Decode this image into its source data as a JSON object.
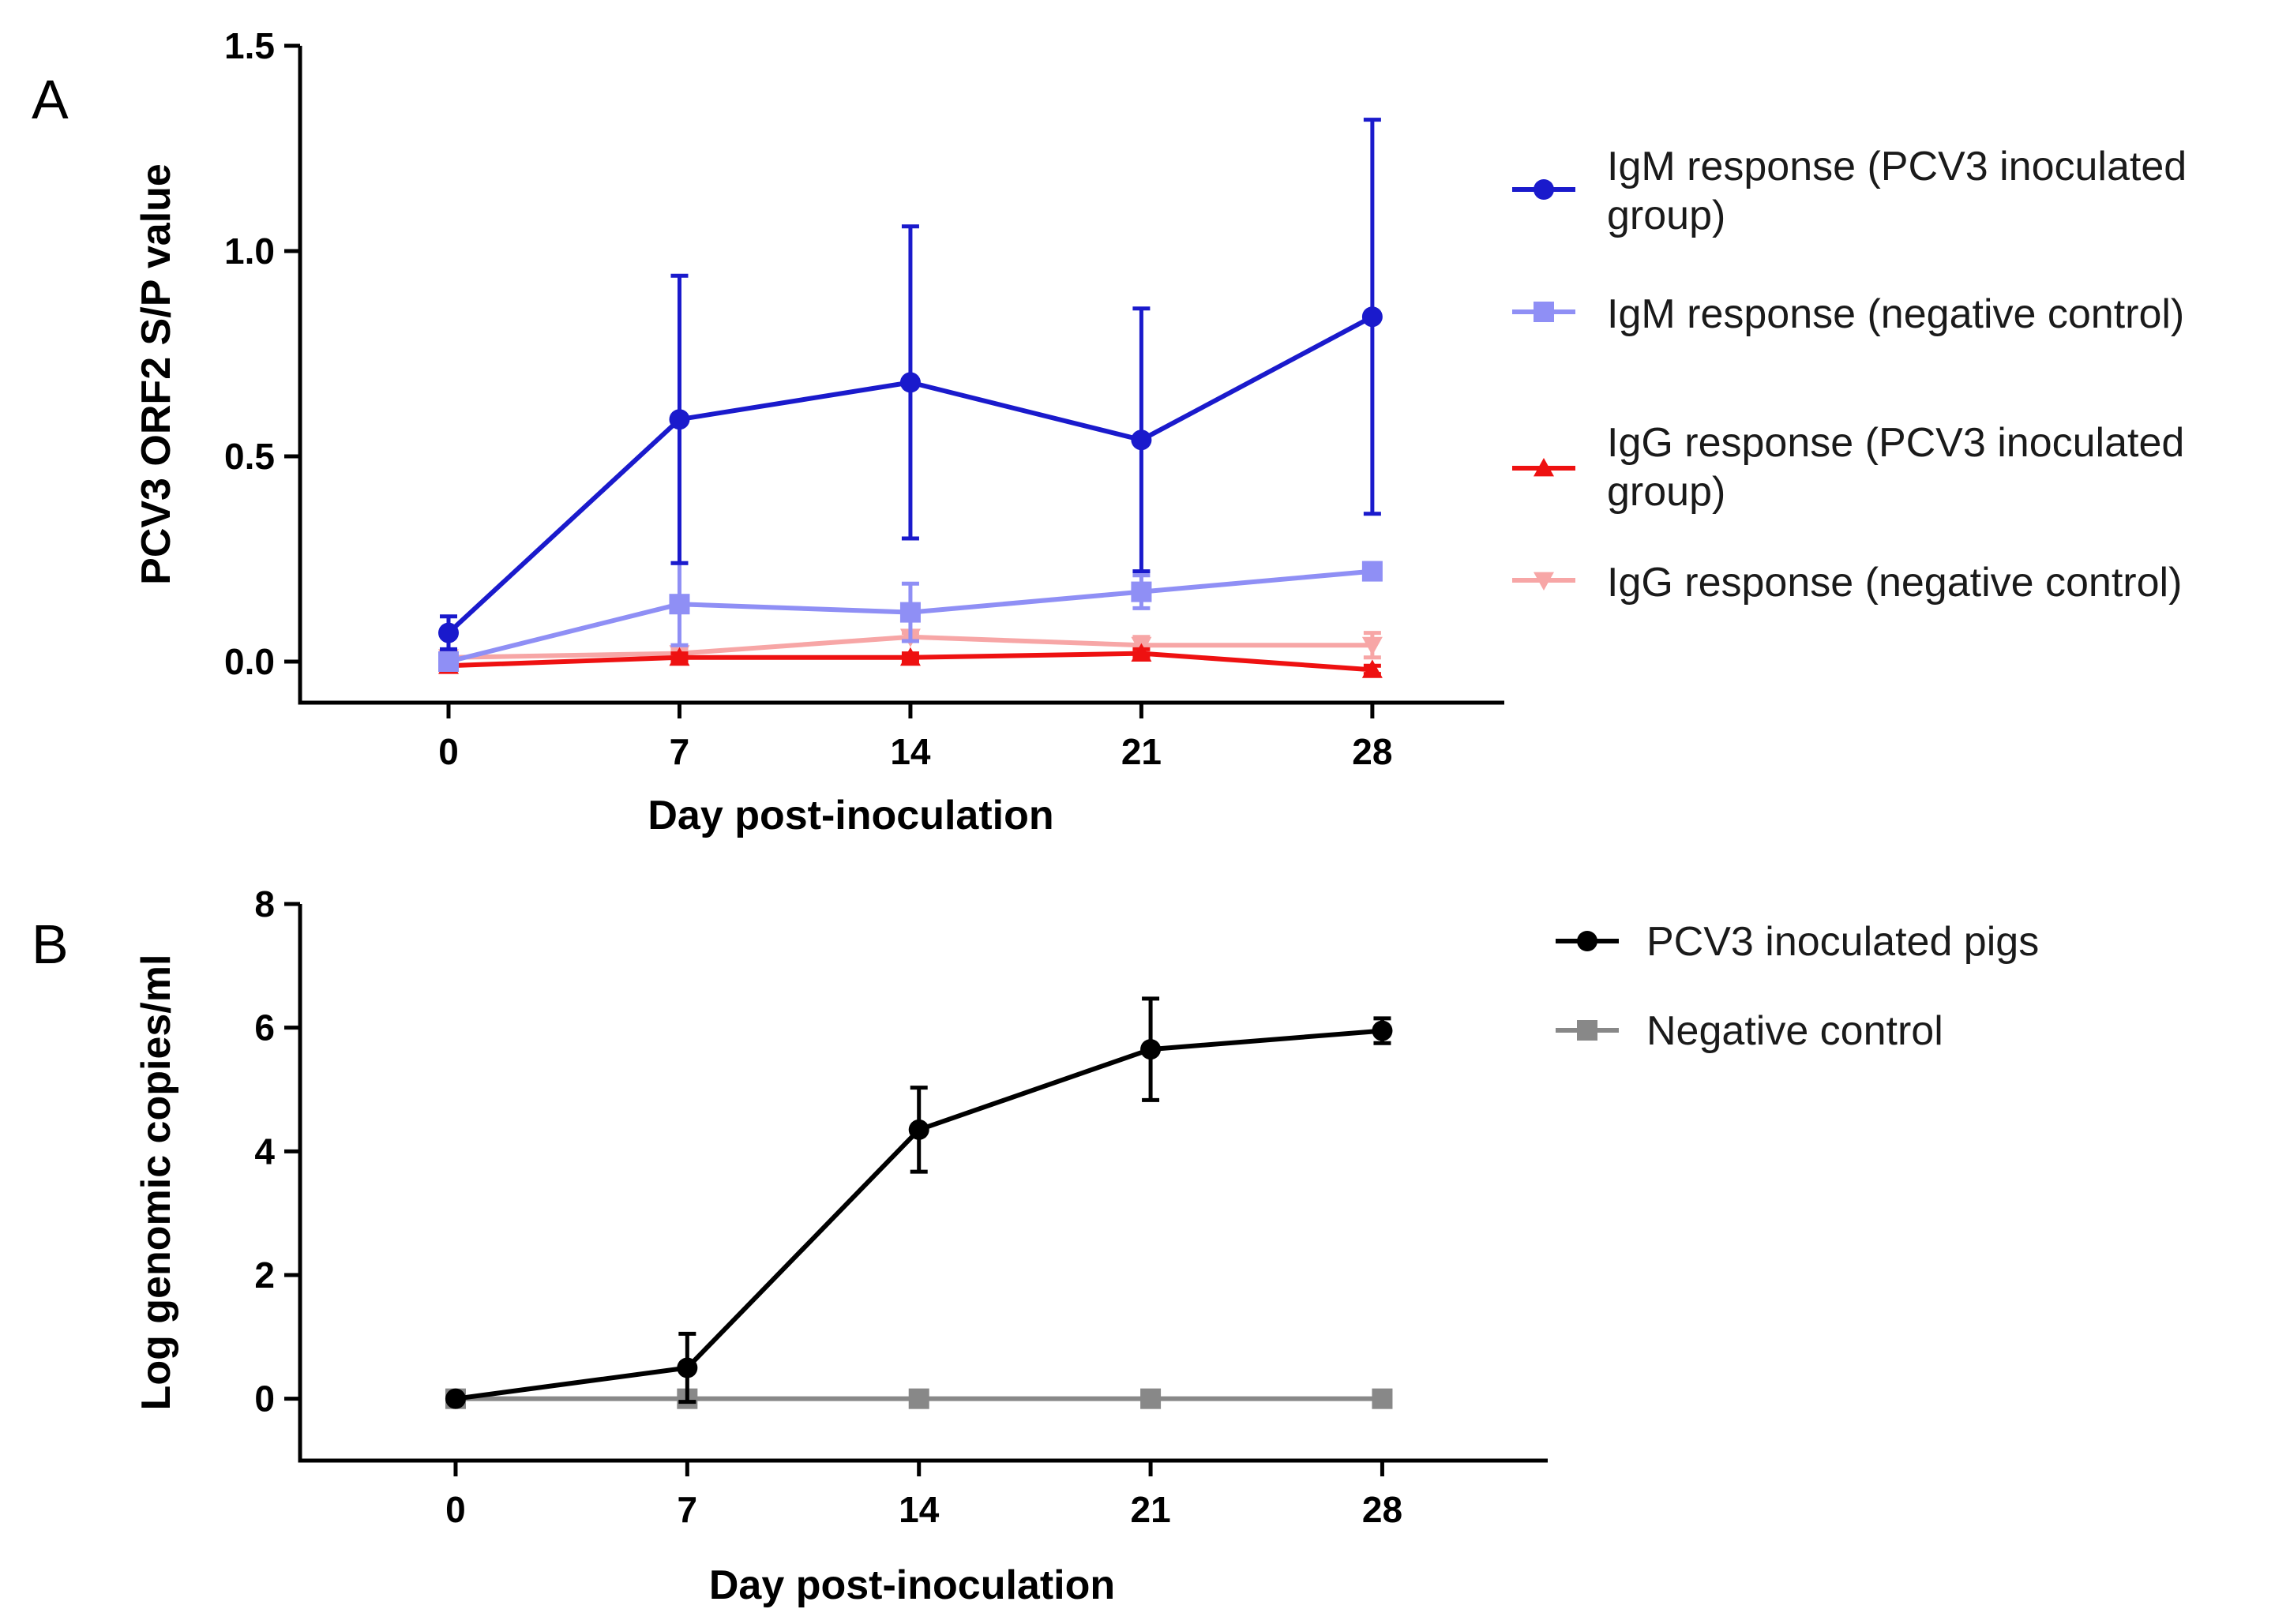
{
  "chart_data": [
    {
      "type": "line",
      "panel_label": "A",
      "title": "",
      "xlabel": "Day post-inoculation",
      "ylabel": "PCV3 ORF2  S/P value",
      "x": [
        0,
        7,
        14,
        21,
        28
      ],
      "xlim": [
        -4.5,
        32
      ],
      "ylim": [
        -0.1,
        1.5
      ],
      "xticks": [
        "0",
        "7",
        "14",
        "21",
        "28"
      ],
      "yticks": [
        {
          "value": 0.0,
          "label": "0.0"
        },
        {
          "value": 0.5,
          "label": "0.5"
        },
        {
          "value": 1.0,
          "label": "1.0"
        },
        {
          "value": 1.5,
          "label": "1.5"
        }
      ],
      "legend_position": "right",
      "series": [
        {
          "name": "IgM response (PCV3 inoculated group)",
          "legend_lines": [
            "IgM response (PCV3 inoculated",
            "group)"
          ],
          "color": "#1a1acc",
          "marker": "circle",
          "values": [
            0.07,
            0.59,
            0.68,
            0.54,
            0.84
          ],
          "err": [
            0.04,
            0.35,
            0.38,
            0.32,
            0.48
          ]
        },
        {
          "name": "IgM response (negative control)",
          "legend_lines": [
            "IgM response (negative control)"
          ],
          "color": "#8f8ff5",
          "marker": "square",
          "values": [
            0.0,
            0.14,
            0.12,
            0.17,
            0.22
          ],
          "err": [
            0.02,
            0.1,
            0.07,
            0.04,
            0.02
          ]
        },
        {
          "name": "IgG response (PCV3 inoculated group)",
          "legend_lines": [
            "IgG response (PCV3 inoculated",
            "group)"
          ],
          "color": "#ee1111",
          "marker": "triangle-up",
          "values": [
            -0.01,
            0.01,
            0.01,
            0.02,
            -0.02
          ],
          "err": [
            0.01,
            0.01,
            0.01,
            0.01,
            0.01
          ]
        },
        {
          "name": "IgG response (negative control)",
          "legend_lines": [
            "IgG response (negative control)"
          ],
          "color": "#f7a6a6",
          "marker": "triangle-down",
          "values": [
            0.01,
            0.02,
            0.06,
            0.04,
            0.04
          ],
          "err": [
            0.01,
            0.01,
            0.01,
            0.02,
            0.03
          ]
        }
      ]
    },
    {
      "type": "line",
      "panel_label": "B",
      "title": "",
      "xlabel": "Day post-inoculation",
      "ylabel": "Log genomic copies/ml",
      "x": [
        0,
        7,
        14,
        21,
        28
      ],
      "xlim": [
        -4.7,
        33
      ],
      "ylim": [
        -1,
        8
      ],
      "xticks": [
        "0",
        "7",
        "14",
        "21",
        "28"
      ],
      "yticks": [
        {
          "value": 0,
          "label": "0"
        },
        {
          "value": 2,
          "label": "2"
        },
        {
          "value": 4,
          "label": "4"
        },
        {
          "value": 6,
          "label": "6"
        },
        {
          "value": 8,
          "label": "8"
        }
      ],
      "legend_position": "right",
      "series": [
        {
          "name": "PCV3 inoculated pigs",
          "legend_lines": [
            "PCV3 inoculated pigs"
          ],
          "color": "#000000",
          "marker": "circle",
          "values": [
            0.0,
            0.5,
            4.35,
            5.65,
            5.95
          ],
          "err": [
            0.02,
            0.55,
            0.68,
            0.82,
            0.2
          ]
        },
        {
          "name": "Negative control",
          "legend_lines": [
            "Negative control"
          ],
          "color": "#888888",
          "marker": "square",
          "values": [
            0,
            0,
            0,
            0,
            0
          ],
          "err": [
            0,
            0,
            0,
            0,
            0
          ]
        }
      ]
    }
  ]
}
